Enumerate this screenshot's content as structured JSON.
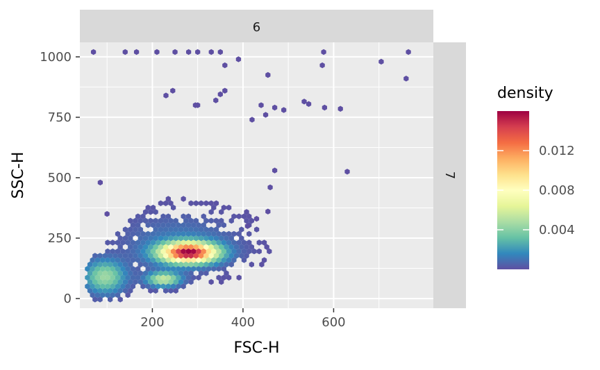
{
  "chart_data": {
    "type": "heatmap",
    "subtype": "hexbin-density",
    "facet_top_label": "6",
    "facet_right_label": "7",
    "xlabel": "FSC-H",
    "ylabel": "SSC-H",
    "xlim": [
      40,
      820
    ],
    "ylim": [
      -40,
      1060
    ],
    "x_ticks": [
      200,
      400,
      600
    ],
    "y_ticks": [
      0,
      250,
      500,
      750,
      1000
    ],
    "x_minor": [
      100,
      300,
      500,
      700
    ],
    "y_minor": [
      125,
      375,
      625,
      875
    ],
    "grid": true,
    "legend": {
      "title": "density",
      "placement": "right",
      "ticks": [
        {
          "value": 0.004,
          "label": "0.004"
        },
        {
          "value": 0.008,
          "label": "0.008"
        },
        {
          "value": 0.012,
          "label": "0.012"
        }
      ],
      "range": [
        0,
        0.016
      ]
    },
    "colors": [
      "#5e4fa2",
      "#3288bd",
      "#66c2a5",
      "#abdda4",
      "#e6f598",
      "#ffffbf",
      "#fee08b",
      "#fdae61",
      "#f46d43",
      "#d53e4f",
      "#9e0142"
    ],
    "clusters": [
      {
        "x": 280,
        "y": 190,
        "sx": 42,
        "sy": 28,
        "peak": 0.0155
      },
      {
        "x": 95,
        "y": 90,
        "sx": 30,
        "sy": 45,
        "peak": 0.0045
      },
      {
        "x": 225,
        "y": 80,
        "sx": 25,
        "sy": 20,
        "peak": 0.0055
      },
      {
        "x": 260,
        "y": 230,
        "sx": 90,
        "sy": 80,
        "peak": 0.0012
      }
    ],
    "outliers": [
      [
        70,
        1020
      ],
      [
        140,
        1020
      ],
      [
        165,
        1020
      ],
      [
        210,
        1020
      ],
      [
        250,
        1020
      ],
      [
        280,
        1020
      ],
      [
        300,
        1020
      ],
      [
        330,
        1020
      ],
      [
        350,
        1020
      ],
      [
        578,
        1020
      ],
      [
        765,
        1020
      ],
      [
        705,
        980
      ],
      [
        575,
        965
      ],
      [
        390,
        990
      ],
      [
        360,
        965
      ],
      [
        760,
        910
      ],
      [
        455,
        925
      ],
      [
        360,
        860
      ],
      [
        350,
        845
      ],
      [
        340,
        820
      ],
      [
        245,
        860
      ],
      [
        230,
        840
      ],
      [
        295,
        800
      ],
      [
        300,
        800
      ],
      [
        440,
        800
      ],
      [
        470,
        790
      ],
      [
        535,
        815
      ],
      [
        545,
        805
      ],
      [
        580,
        790
      ],
      [
        615,
        785
      ],
      [
        490,
        780
      ],
      [
        450,
        760
      ],
      [
        420,
        740
      ],
      [
        630,
        525
      ],
      [
        470,
        530
      ],
      [
        460,
        460
      ],
      [
        455,
        360
      ],
      [
        430,
        330
      ],
      [
        410,
        300
      ],
      [
        85,
        480
      ],
      [
        100,
        350
      ]
    ]
  }
}
